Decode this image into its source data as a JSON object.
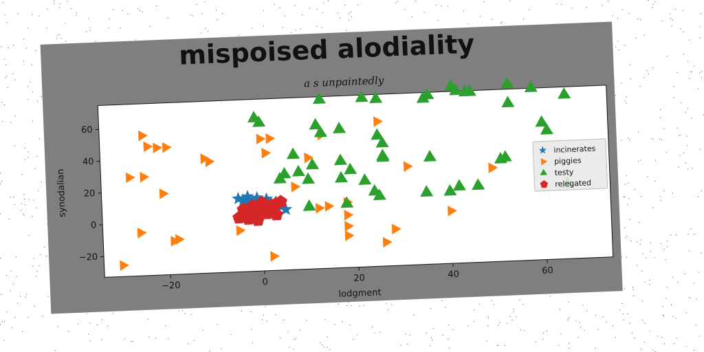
{
  "chart_data": {
    "type": "scatter",
    "title": "mispoised alodiality",
    "subtitle": "a s unpaintedly",
    "xlabel": "lodgment",
    "ylabel": "synodalian",
    "xlim": [
      -34,
      74
    ],
    "ylim": [
      -33,
      75
    ],
    "xticks": [
      -20,
      0,
      20,
      40,
      60
    ],
    "yticks": [
      -20,
      0,
      20,
      40,
      60
    ],
    "xtick_labels": [
      "−20",
      "0",
      "20",
      "40",
      "60"
    ],
    "ytick_labels": [
      "−20",
      "0",
      "20",
      "40",
      "60"
    ],
    "grid": false,
    "legend_position": "center-right",
    "series": [
      {
        "name": "incinerates",
        "marker": "star",
        "color": "#1f77b4",
        "x": [
          -5,
          -4,
          -3,
          -2,
          -1,
          0,
          1,
          2,
          3,
          4,
          5,
          -3,
          -1,
          1,
          3
        ],
        "y": [
          13,
          12,
          12,
          11,
          11,
          10,
          10,
          9,
          8,
          7,
          5,
          14,
          13,
          12,
          10
        ]
      },
      {
        "name": "piggies",
        "marker": "triangle-right",
        "color": "#ff7f0e",
        "x": [
          -25,
          -24,
          -22,
          -20,
          -12,
          -11,
          -28,
          -25,
          -21,
          -26,
          -19,
          -18,
          -5,
          -30,
          0,
          2,
          1,
          10,
          25,
          13,
          18,
          31,
          18,
          18,
          18,
          28,
          26,
          40,
          49,
          2,
          7,
          12,
          14
        ],
        "y": [
          55,
          48,
          47,
          47,
          39,
          37,
          29,
          29,
          18,
          -6,
          -12,
          -11,
          -7,
          -26,
          50,
          50,
          41,
          37,
          58,
          51,
          8,
          29,
          0,
          -7,
          -13,
          -10,
          -18,
          0,
          26,
          -24,
          19,
          5,
          6
        ]
      },
      {
        "name": "testy",
        "marker": "triangle-up",
        "color": "#2ca02c",
        "x": [
          -1,
          0,
          13,
          22,
          25,
          12,
          17,
          7,
          4,
          5,
          8,
          11,
          10,
          17,
          19,
          17,
          25,
          26,
          26,
          26,
          13,
          22,
          24,
          25,
          35,
          36,
          41,
          42,
          44,
          45,
          53,
          58,
          53,
          60,
          61,
          51,
          52,
          36,
          35,
          40,
          42,
          46,
          65,
          65,
          10,
          18
        ],
        "y": [
          63,
          60,
          73,
          73,
          72,
          57,
          54,
          39,
          24,
          27,
          28,
          32,
          23,
          34,
          28,
          23,
          49,
          44,
          36,
          35,
          52,
          21,
          14,
          11,
          71,
          73,
          78,
          75,
          74,
          74,
          78,
          75,
          66,
          53,
          48,
          31,
          32,
          34,
          12,
          12,
          15,
          15,
          70,
          14,
          6,
          7
        ]
      },
      {
        "name": "relegated",
        "marker": "pentagon",
        "color": "#d62728",
        "x": [
          -5,
          -4,
          -3,
          -2,
          -1,
          0,
          1,
          2,
          3,
          4,
          -4,
          -2,
          0,
          2,
          -3,
          -1,
          1,
          3
        ],
        "y": [
          1,
          2,
          3,
          4,
          5,
          6,
          7,
          8,
          9,
          10,
          6,
          8,
          10,
          5,
          0,
          -1,
          3,
          2
        ]
      }
    ]
  },
  "colors": {
    "figure_background": "#7f7f7f",
    "plot_background": "#ffffff",
    "noise": "#444444"
  }
}
